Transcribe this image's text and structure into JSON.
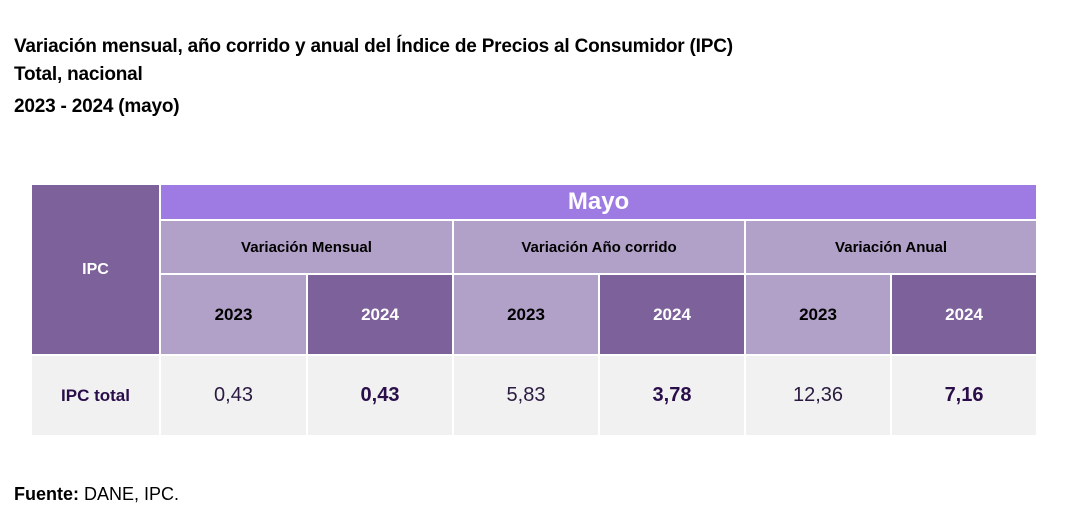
{
  "header": {
    "title": "Variación mensual, año corrido y anual del Índice de Precios al Consumidor (IPC)",
    "subtitle": "Total, nacional",
    "period": "2023 - 2024 (mayo)"
  },
  "table": {
    "corner_label": "IPC",
    "month": "Mayo",
    "groups": [
      {
        "label": "Variación Mensual",
        "years": [
          "2023",
          "2024"
        ]
      },
      {
        "label": "Variación Año corrido",
        "years": [
          "2023",
          "2024"
        ]
      },
      {
        "label": "Variación Anual",
        "years": [
          "2023",
          "2024"
        ]
      }
    ],
    "rows": [
      {
        "label": "IPC total",
        "values": [
          "0,43",
          "0,43",
          "5,83",
          "3,78",
          "12,36",
          "7,16"
        ]
      }
    ]
  },
  "footer": {
    "source_label": "Fuente:",
    "source_text": " DANE, IPC."
  },
  "colors": {
    "dark_purple": "#7d619b",
    "light_purple": "#b1a0c7",
    "accent_purple": "#9d7be2",
    "row_bg": "#f1f1f1"
  }
}
